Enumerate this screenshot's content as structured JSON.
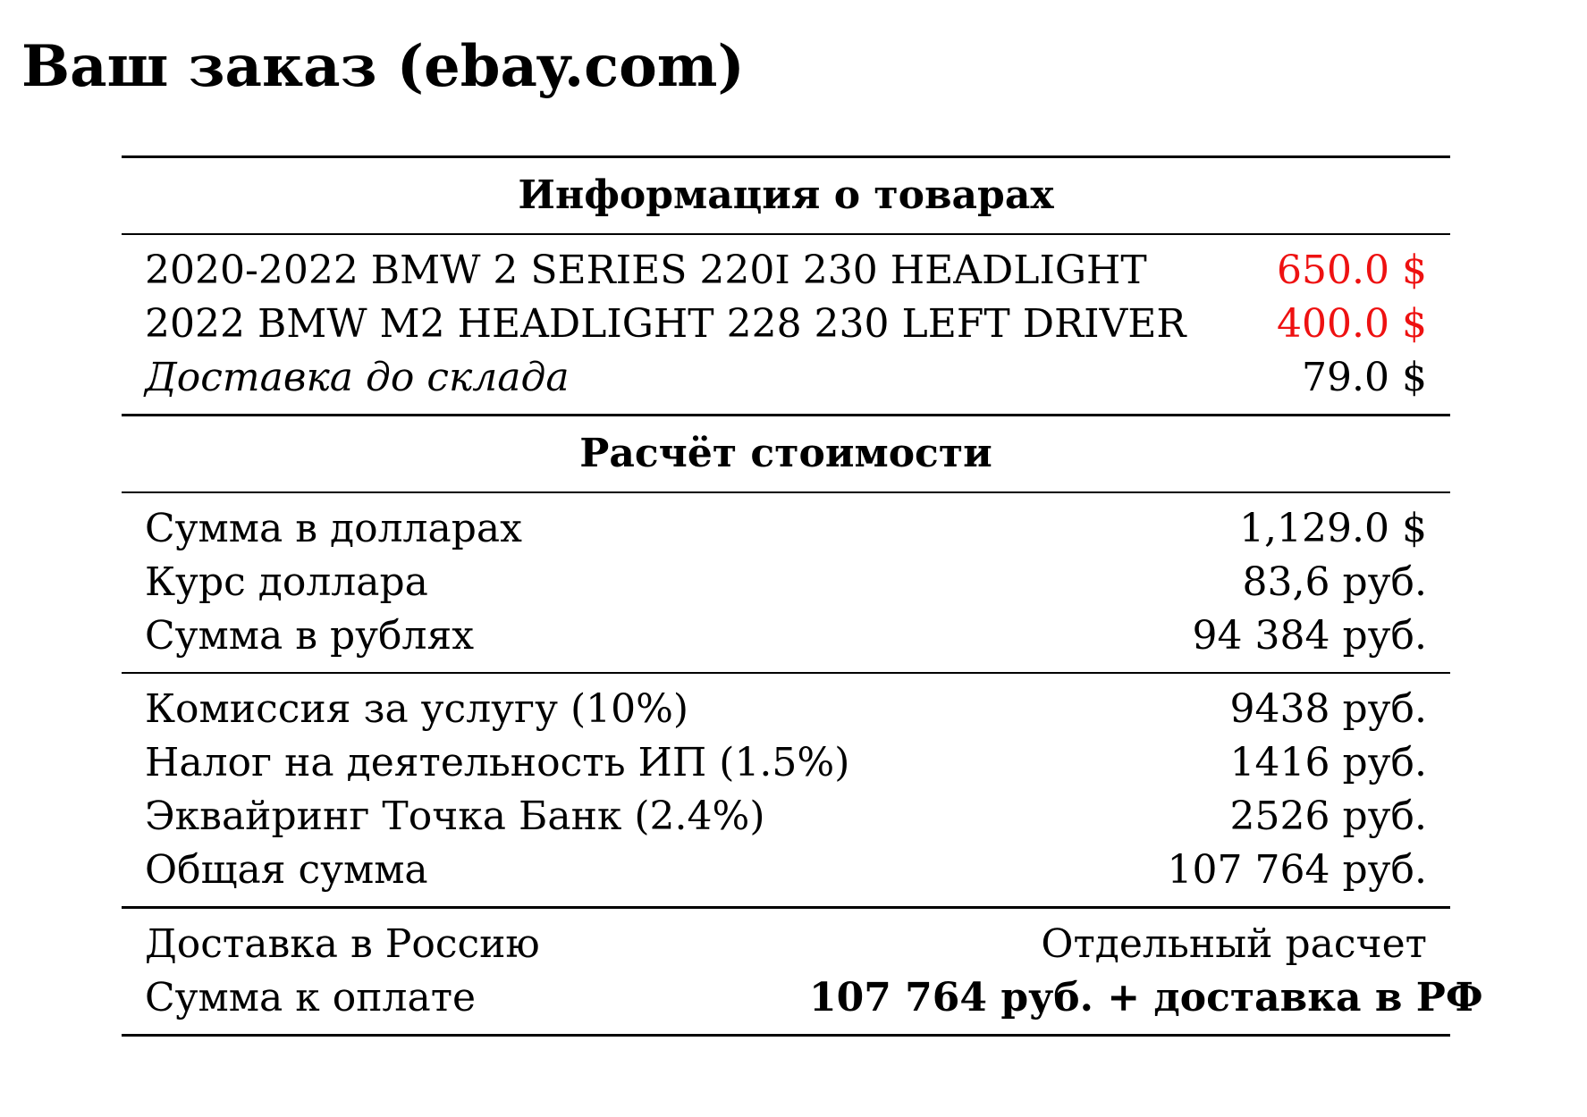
{
  "document": {
    "title": "Ваш заказ (ebay.com)"
  },
  "sections": {
    "goods_heading": "Информация о товарах",
    "calc_heading": "Расчёт стоимости"
  },
  "items": [
    {
      "name": "2020-2022 BMW 2 SERIES 220I 230 HEADLIGHT",
      "price": "650.0 $"
    },
    {
      "name": "2022 BMW M2 HEADLIGHT 228 230 LEFT DRIVER",
      "price": "400.0 $"
    }
  ],
  "warehouse_shipping": {
    "label": "Доставка до склада",
    "value": "79.0 $"
  },
  "conversion": [
    {
      "label": "Сумма в долларах",
      "value": "1,129.0 $"
    },
    {
      "label": "Курс доллара",
      "value": "83,6 руб."
    },
    {
      "label": "Сумма в рублях",
      "value": "94 384 руб."
    }
  ],
  "fees": [
    {
      "label": "Комиссия за услугу (10%)",
      "value": "9438 руб."
    },
    {
      "label": "Налог на деятельность ИП (1.5%)",
      "value": "1416 руб."
    },
    {
      "label": "Эквайринг Точка Банк (2.4%)",
      "value": "2526 руб."
    },
    {
      "label": "Общая сумма",
      "value": "107 764 руб."
    }
  ],
  "final": [
    {
      "label": "Доставка в Россию",
      "value": "Отдельный расчет"
    },
    {
      "label": "Сумма к оплате",
      "value": "107 764 руб. + доставка в РФ"
    }
  ],
  "colors": {
    "item_price": "#ee1111",
    "text": "#000000",
    "background": "#ffffff"
  }
}
